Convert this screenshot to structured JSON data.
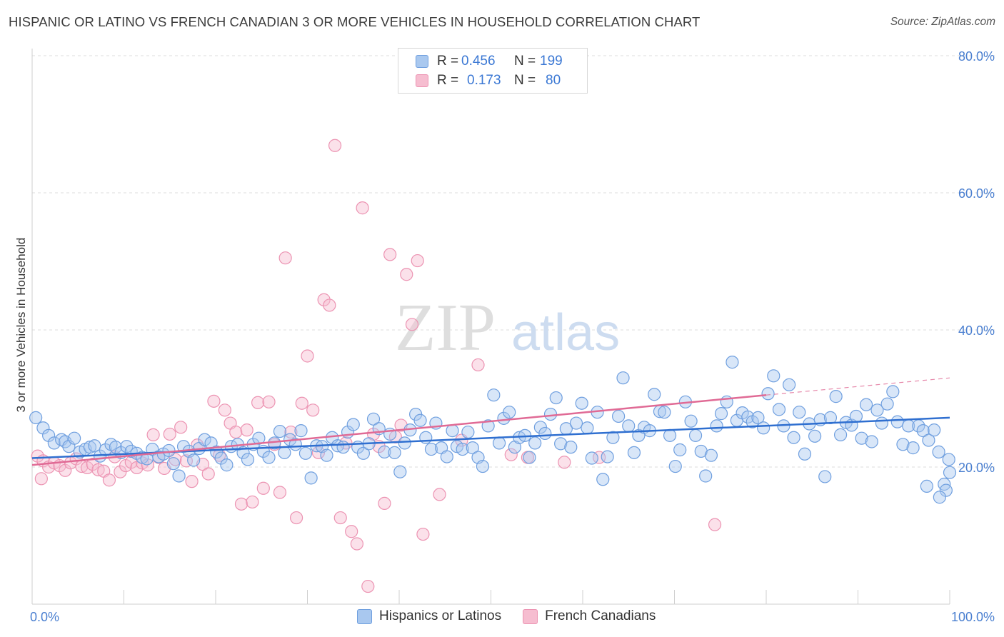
{
  "header": {
    "title": "HISPANIC OR LATINO VS FRENCH CANADIAN 3 OR MORE VEHICLES IN HOUSEHOLD CORRELATION CHART",
    "source": "Source: ZipAtlas.com"
  },
  "watermark": {
    "zip": "ZIP",
    "atlas": "atlas"
  },
  "colors": {
    "blue_fill": "#a9c8ef",
    "blue_stroke": "#6f9fdf",
    "blue_line": "#2f6fd0",
    "pink_fill": "#f6bdd0",
    "pink_stroke": "#ec93b2",
    "pink_line": "#e06a95",
    "tick_text": "#4a7fd0",
    "grid": "#dcdcdc"
  },
  "legend": {
    "rows": [
      {
        "r_label": "R =",
        "r_value": "0.456",
        "n_label": "N =",
        "n_value": "199"
      },
      {
        "r_label": "R =",
        "r_value": "0.173",
        "n_label": "N =",
        "n_value": "80"
      }
    ]
  },
  "bottom_legend": {
    "items": [
      {
        "label": "Hispanics or Latinos"
      },
      {
        "label": "French Canadians"
      }
    ]
  },
  "chart_data": {
    "type": "scatter",
    "title": "HISPANIC OR LATINO VS FRENCH CANADIAN 3 OR MORE VEHICLES IN HOUSEHOLD CORRELATION CHART",
    "xlabel": "",
    "ylabel": "3 or more Vehicles in Household",
    "xlim": [
      0,
      100
    ],
    "ylim": [
      0,
      80
    ],
    "x_tick_labels": [
      "0.0%",
      "100.0%"
    ],
    "y_ticks": [
      20,
      40,
      60,
      80
    ],
    "y_tick_labels": [
      "20.0%",
      "40.0%",
      "60.0%",
      "80.0%"
    ],
    "grid": true,
    "legend_position": "top-center",
    "series": [
      {
        "name": "Hispanics or Latinos",
        "r": 0.456,
        "n": 199,
        "trend": {
          "x": [
            0,
            100
          ],
          "y": [
            21.3,
            27.2
          ]
        },
        "points": [
          [
            0.4,
            27.2
          ],
          [
            1.2,
            25.7
          ],
          [
            1.8,
            24.6
          ],
          [
            2.4,
            23.5
          ],
          [
            3.2,
            24.0
          ],
          [
            3.6,
            23.7
          ],
          [
            4.0,
            23.0
          ],
          [
            4.6,
            24.2
          ],
          [
            5.2,
            22.2
          ],
          [
            5.8,
            22.6
          ],
          [
            6.3,
            22.9
          ],
          [
            6.8,
            23.1
          ],
          [
            7.4,
            21.6
          ],
          [
            8.0,
            22.5
          ],
          [
            8.6,
            23.3
          ],
          [
            9.1,
            22.9
          ],
          [
            9.7,
            22.1
          ],
          [
            10.3,
            23.0
          ],
          [
            10.8,
            22.3
          ],
          [
            11.4,
            22.0
          ],
          [
            12.0,
            21.4
          ],
          [
            12.5,
            21.2
          ],
          [
            13.1,
            22.6
          ],
          [
            13.8,
            21.5
          ],
          [
            14.3,
            21.9
          ],
          [
            14.9,
            22.4
          ],
          [
            15.4,
            20.5
          ],
          [
            16.0,
            18.7
          ],
          [
            16.5,
            23.0
          ],
          [
            17.1,
            22.3
          ],
          [
            17.6,
            21.0
          ],
          [
            18.2,
            22.7
          ],
          [
            18.8,
            24.0
          ],
          [
            19.5,
            23.5
          ],
          [
            20.1,
            22.2
          ],
          [
            20.6,
            21.3
          ],
          [
            21.2,
            20.3
          ],
          [
            21.7,
            23.0
          ],
          [
            22.4,
            23.3
          ],
          [
            23.0,
            22.1
          ],
          [
            23.5,
            21.1
          ],
          [
            24.1,
            23.3
          ],
          [
            24.7,
            24.2
          ],
          [
            25.2,
            22.3
          ],
          [
            25.8,
            21.4
          ],
          [
            26.4,
            23.5
          ],
          [
            27.0,
            25.2
          ],
          [
            27.5,
            22.1
          ],
          [
            28.1,
            24.0
          ],
          [
            28.7,
            23.3
          ],
          [
            29.3,
            25.3
          ],
          [
            29.8,
            22.0
          ],
          [
            30.4,
            18.4
          ],
          [
            31.0,
            23.1
          ],
          [
            31.6,
            23.0
          ],
          [
            32.1,
            21.7
          ],
          [
            32.7,
            24.3
          ],
          [
            33.3,
            23.1
          ],
          [
            33.9,
            22.9
          ],
          [
            34.4,
            25.1
          ],
          [
            35.0,
            26.2
          ],
          [
            35.5,
            22.9
          ],
          [
            36.1,
            22.0
          ],
          [
            36.7,
            23.4
          ],
          [
            37.2,
            27.0
          ],
          [
            37.8,
            25.6
          ],
          [
            38.4,
            22.2
          ],
          [
            39.0,
            24.8
          ],
          [
            39.5,
            22.1
          ],
          [
            40.1,
            19.3
          ],
          [
            40.6,
            23.5
          ],
          [
            41.2,
            25.4
          ],
          [
            41.8,
            27.7
          ],
          [
            42.3,
            26.8
          ],
          [
            42.9,
            24.3
          ],
          [
            43.5,
            22.6
          ],
          [
            44.0,
            26.4
          ],
          [
            44.6,
            22.8
          ],
          [
            45.2,
            21.5
          ],
          [
            45.8,
            25.3
          ],
          [
            46.3,
            23.0
          ],
          [
            46.9,
            22.6
          ],
          [
            47.5,
            25.1
          ],
          [
            48.0,
            22.8
          ],
          [
            48.6,
            21.4
          ],
          [
            49.1,
            20.1
          ],
          [
            49.7,
            26.0
          ],
          [
            50.3,
            30.5
          ],
          [
            50.9,
            23.5
          ],
          [
            51.4,
            27.1
          ],
          [
            52.0,
            28.0
          ],
          [
            52.6,
            22.9
          ],
          [
            53.1,
            24.3
          ],
          [
            53.7,
            24.6
          ],
          [
            54.2,
            21.4
          ],
          [
            54.8,
            23.5
          ],
          [
            55.4,
            25.8
          ],
          [
            55.9,
            24.9
          ],
          [
            56.5,
            27.7
          ],
          [
            57.1,
            30.1
          ],
          [
            57.6,
            23.4
          ],
          [
            58.2,
            25.6
          ],
          [
            58.7,
            22.9
          ],
          [
            59.3,
            26.4
          ],
          [
            59.9,
            29.3
          ],
          [
            60.5,
            25.7
          ],
          [
            61.0,
            21.3
          ],
          [
            61.6,
            28.0
          ],
          [
            62.2,
            18.2
          ],
          [
            62.7,
            21.5
          ],
          [
            63.3,
            24.3
          ],
          [
            63.9,
            27.4
          ],
          [
            64.4,
            33.0
          ],
          [
            65.0,
            26.0
          ],
          [
            65.6,
            22.1
          ],
          [
            66.1,
            24.6
          ],
          [
            66.7,
            25.8
          ],
          [
            67.3,
            25.3
          ],
          [
            67.8,
            30.6
          ],
          [
            68.4,
            28.1
          ],
          [
            68.9,
            28.0
          ],
          [
            69.5,
            24.6
          ],
          [
            70.1,
            20.1
          ],
          [
            70.6,
            22.5
          ],
          [
            71.2,
            29.5
          ],
          [
            71.8,
            26.7
          ],
          [
            72.3,
            24.6
          ],
          [
            72.9,
            22.3
          ],
          [
            73.4,
            18.7
          ],
          [
            74.0,
            21.7
          ],
          [
            74.6,
            26.0
          ],
          [
            75.1,
            27.8
          ],
          [
            75.7,
            29.5
          ],
          [
            76.3,
            35.3
          ],
          [
            76.8,
            26.8
          ],
          [
            77.4,
            27.9
          ],
          [
            78.0,
            27.3
          ],
          [
            78.5,
            26.6
          ],
          [
            79.1,
            27.2
          ],
          [
            79.7,
            25.7
          ],
          [
            80.2,
            30.7
          ],
          [
            80.8,
            33.3
          ],
          [
            81.4,
            28.4
          ],
          [
            81.9,
            26.0
          ],
          [
            82.5,
            32.0
          ],
          [
            83.0,
            24.3
          ],
          [
            83.6,
            28.0
          ],
          [
            84.2,
            21.9
          ],
          [
            84.7,
            26.3
          ],
          [
            85.3,
            24.5
          ],
          [
            85.9,
            26.9
          ],
          [
            86.4,
            18.6
          ],
          [
            87.0,
            27.2
          ],
          [
            87.6,
            30.3
          ],
          [
            88.1,
            24.7
          ],
          [
            88.7,
            26.5
          ],
          [
            89.3,
            26.1
          ],
          [
            89.8,
            27.4
          ],
          [
            90.4,
            24.2
          ],
          [
            90.9,
            29.1
          ],
          [
            91.5,
            23.7
          ],
          [
            92.1,
            28.3
          ],
          [
            92.6,
            26.4
          ],
          [
            93.2,
            29.2
          ],
          [
            93.8,
            31.0
          ],
          [
            94.3,
            26.6
          ],
          [
            94.9,
            23.3
          ],
          [
            95.5,
            26.0
          ],
          [
            96.0,
            22.8
          ],
          [
            96.6,
            26.0
          ],
          [
            97.1,
            25.3
          ],
          [
            97.7,
            23.9
          ],
          [
            98.3,
            25.4
          ],
          [
            98.8,
            22.2
          ],
          [
            99.4,
            17.5
          ],
          [
            99.9,
            21.1
          ],
          [
            100.0,
            19.2
          ],
          [
            99.6,
            16.6
          ],
          [
            98.9,
            15.6
          ],
          [
            97.5,
            17.2
          ]
        ]
      },
      {
        "name": "French Canadians",
        "r": 0.173,
        "n": 80,
        "trend": {
          "x": [
            0,
            80
          ],
          "y": [
            20.3,
            30.5
          ],
          "dashed_to": [
            100,
            33.0
          ]
        },
        "points": [
          [
            0.6,
            21.6
          ],
          [
            1.2,
            20.9
          ],
          [
            1.8,
            20.0
          ],
          [
            2.4,
            20.6
          ],
          [
            3.0,
            20.2
          ],
          [
            3.6,
            19.5
          ],
          [
            4.2,
            20.6
          ],
          [
            4.8,
            21.2
          ],
          [
            5.4,
            20.1
          ],
          [
            6.0,
            19.9
          ],
          [
            6.6,
            20.4
          ],
          [
            7.2,
            19.6
          ],
          [
            7.8,
            19.4
          ],
          [
            8.4,
            18.1
          ],
          [
            9.0,
            21.5
          ],
          [
            9.6,
            19.3
          ],
          [
            10.2,
            20.2
          ],
          [
            10.8,
            20.7
          ],
          [
            11.4,
            19.9
          ],
          [
            12.0,
            20.6
          ],
          [
            12.6,
            20.3
          ],
          [
            13.2,
            24.7
          ],
          [
            13.8,
            21.4
          ],
          [
            14.4,
            19.8
          ],
          [
            15.0,
            24.8
          ],
          [
            15.6,
            21.1
          ],
          [
            16.2,
            25.8
          ],
          [
            16.8,
            20.9
          ],
          [
            17.4,
            17.9
          ],
          [
            18.0,
            23.2
          ],
          [
            18.6,
            20.4
          ],
          [
            19.2,
            19.0
          ],
          [
            19.8,
            29.6
          ],
          [
            20.4,
            21.7
          ],
          [
            21.0,
            28.3
          ],
          [
            21.6,
            26.4
          ],
          [
            22.2,
            25.1
          ],
          [
            22.8,
            14.6
          ],
          [
            23.4,
            25.4
          ],
          [
            24.0,
            14.9
          ],
          [
            24.6,
            29.4
          ],
          [
            25.2,
            16.9
          ],
          [
            25.8,
            29.5
          ],
          [
            26.4,
            23.3
          ],
          [
            27.0,
            16.3
          ],
          [
            27.6,
            50.5
          ],
          [
            28.2,
            25.1
          ],
          [
            28.8,
            12.6
          ],
          [
            29.4,
            29.3
          ],
          [
            30.0,
            36.2
          ],
          [
            30.6,
            28.3
          ],
          [
            31.2,
            22.1
          ],
          [
            31.8,
            44.4
          ],
          [
            32.4,
            43.6
          ],
          [
            33.0,
            66.9
          ],
          [
            33.6,
            12.6
          ],
          [
            34.2,
            23.5
          ],
          [
            34.8,
            10.6
          ],
          [
            35.4,
            8.8
          ],
          [
            36.0,
            57.8
          ],
          [
            36.6,
            2.6
          ],
          [
            37.2,
            24.8
          ],
          [
            37.8,
            23.0
          ],
          [
            38.4,
            14.7
          ],
          [
            39.0,
            51.0
          ],
          [
            39.6,
            24.4
          ],
          [
            40.2,
            26.1
          ],
          [
            40.8,
            48.1
          ],
          [
            41.4,
            40.8
          ],
          [
            42.0,
            50.1
          ],
          [
            42.6,
            10.2
          ],
          [
            44.4,
            16.0
          ],
          [
            46.8,
            23.9
          ],
          [
            48.6,
            34.9
          ],
          [
            52.2,
            21.8
          ],
          [
            54.0,
            21.4
          ],
          [
            58.0,
            20.7
          ],
          [
            61.8,
            21.4
          ],
          [
            74.4,
            11.6
          ],
          [
            1.0,
            18.3
          ]
        ]
      }
    ]
  }
}
